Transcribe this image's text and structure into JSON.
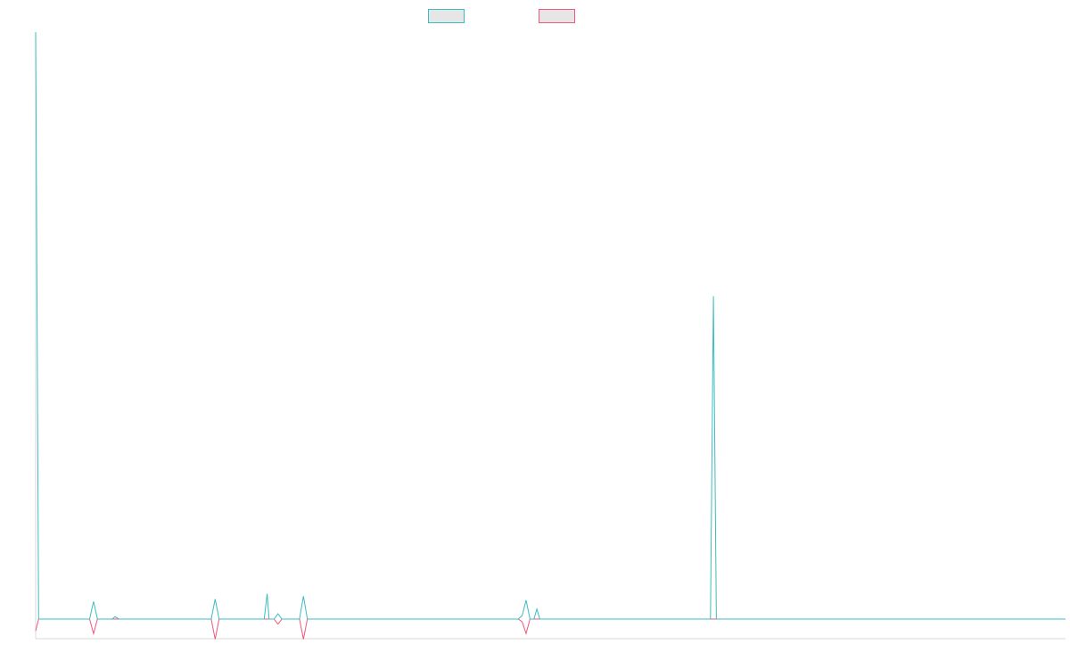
{
  "chart_data": {
    "type": "line",
    "title": "",
    "xlabel": "",
    "ylabel": "",
    "legend": {
      "placement": "top-center",
      "entries": [
        {
          "color": "#3bbcc0"
        },
        {
          "color": "#f0577b"
        }
      ]
    },
    "grid": false,
    "x_range": [
      0,
      1.05
    ],
    "y_range": [
      -0.035,
      1.0
    ],
    "series": [
      {
        "color": "#3bbcc0",
        "points": [
          [
            0.0,
            1.0
          ],
          [
            0.003,
            0.0
          ],
          [
            0.055,
            0.0
          ],
          [
            0.059,
            0.03
          ],
          [
            0.063,
            0.0
          ],
          [
            0.078,
            0.0
          ],
          [
            0.081,
            0.004
          ],
          [
            0.085,
            0.0
          ],
          [
            0.179,
            0.0
          ],
          [
            0.183,
            0.034
          ],
          [
            0.187,
            0.0
          ],
          [
            0.233,
            0.0
          ],
          [
            0.236,
            0.043
          ],
          [
            0.238,
            0.0
          ],
          [
            0.243,
            0.0
          ],
          [
            0.247,
            0.009
          ],
          [
            0.251,
            0.0
          ],
          [
            0.269,
            0.0
          ],
          [
            0.273,
            0.039
          ],
          [
            0.277,
            0.0
          ],
          [
            0.492,
            0.0
          ],
          [
            0.496,
            0.006
          ],
          [
            0.5,
            0.032
          ],
          [
            0.504,
            0.0
          ],
          [
            0.508,
            0.0
          ],
          [
            0.511,
            0.017
          ],
          [
            0.514,
            0.0
          ],
          [
            0.688,
            0.0
          ],
          [
            0.691,
            0.55
          ],
          [
            0.694,
            0.0
          ],
          [
            1.05,
            0.0
          ]
        ]
      },
      {
        "color": "#f0577b",
        "points": [
          [
            0.0,
            -0.021
          ],
          [
            0.003,
            0.0
          ],
          [
            0.055,
            0.0
          ],
          [
            0.059,
            -0.026
          ],
          [
            0.063,
            0.0
          ],
          [
            0.179,
            0.0
          ],
          [
            0.183,
            -0.036
          ],
          [
            0.187,
            0.0
          ],
          [
            0.243,
            0.0
          ],
          [
            0.247,
            -0.009
          ],
          [
            0.251,
            0.0
          ],
          [
            0.269,
            0.0
          ],
          [
            0.273,
            -0.036
          ],
          [
            0.277,
            0.0
          ],
          [
            0.492,
            0.0
          ],
          [
            0.496,
            -0.005
          ],
          [
            0.5,
            -0.026
          ],
          [
            0.504,
            0.0
          ],
          [
            1.05,
            0.0
          ]
        ]
      }
    ]
  }
}
